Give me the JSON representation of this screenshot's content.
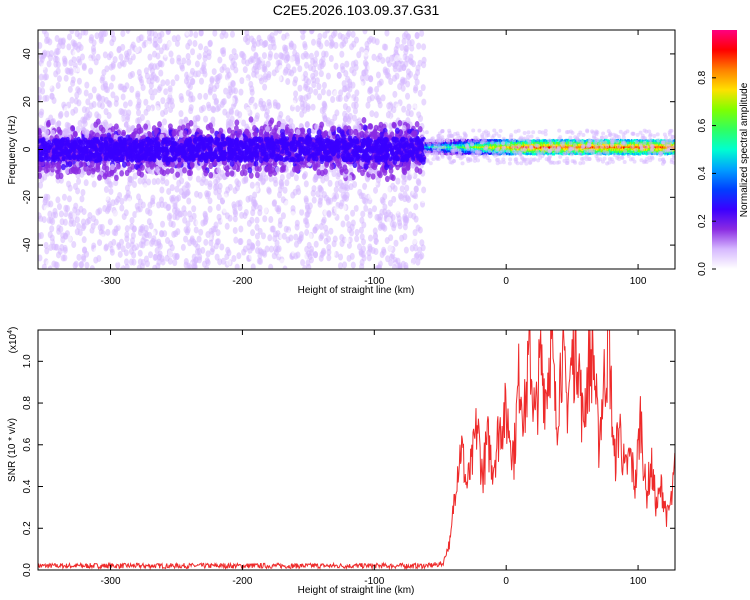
{
  "title": "C2E5.2026.103.09.37.G31",
  "chart_data": [
    {
      "type": "heatmap",
      "name": "spectrogram",
      "xlabel": "Height of straight line (km)",
      "ylabel": "Frequency (Hz)",
      "xlim": [
        -355,
        128
      ],
      "ylim": [
        -50,
        50
      ],
      "xticks": [
        -300,
        -200,
        -100,
        0,
        100
      ],
      "yticks": [
        -40,
        -20,
        0,
        20,
        40
      ],
      "colorbar": {
        "label": "Normalized spectral amplitude",
        "range": [
          0,
          1
        ],
        "ticks": [
          "0.0",
          "0.2",
          "0.4",
          "0.6",
          "0.8"
        ],
        "colors": [
          "#ffffff",
          "#d6b8ff",
          "#8a2be2",
          "#3a00ff",
          "#0040ff",
          "#00a0ff",
          "#00ffd0",
          "#30ff60",
          "#80ff00",
          "#ffe000",
          "#ff8000",
          "#ff0000",
          "#ff0080"
        ]
      },
      "features": [
        {
          "region": "x from -355 to -62 km",
          "description": "broad noise: scattered violet speckle over full band, dense blue band around 0 Hz (about -10 to +10 Hz)"
        },
        {
          "region": "x from -62 to 128 km",
          "description": "narrow signal near +1 Hz, amplitude 0.4-0.95 (green to red), width about +/-3 Hz"
        }
      ]
    },
    {
      "type": "line",
      "name": "snr",
      "xlabel": "Height of straight line (km)",
      "ylabel": "SNR (10 * v/v)",
      "yscale_label": "(x10",
      "yscale_exp": "4",
      "xlim": [
        -355,
        128
      ],
      "ylim": [
        0,
        1.15
      ],
      "xticks": [
        -300,
        -200,
        -100,
        0,
        100
      ],
      "yticks": [
        "0.0",
        "0.2",
        "0.4",
        "0.6",
        "0.8",
        "1.0"
      ],
      "series": [
        {
          "name": "SNR",
          "color": "#ee2a2a",
          "x": [
            -355,
            -300,
            -250,
            -200,
            -150,
            -100,
            -60,
            -48,
            -42,
            -38,
            -34,
            -30,
            -26,
            -22,
            -18,
            -14,
            -10,
            -6,
            -2,
            2,
            6,
            10,
            14,
            18,
            22,
            26,
            30,
            34,
            38,
            42,
            46,
            50,
            54,
            58,
            62,
            66,
            70,
            74,
            78,
            82,
            86,
            90,
            94,
            98,
            102,
            106,
            110,
            114,
            118,
            122,
            126,
            128
          ],
          "y": [
            0.02,
            0.02,
            0.02,
            0.02,
            0.02,
            0.02,
            0.02,
            0.03,
            0.15,
            0.45,
            0.6,
            0.4,
            0.5,
            0.7,
            0.45,
            0.62,
            0.5,
            0.65,
            0.75,
            0.7,
            0.55,
            0.95,
            0.75,
            1.05,
            0.7,
            1.0,
            0.85,
            1.1,
            0.7,
            1.05,
            0.8,
            1.0,
            1.1,
            0.7,
            0.95,
            1.05,
            0.6,
            0.9,
            1.08,
            0.5,
            0.7,
            0.45,
            0.55,
            0.4,
            0.75,
            0.35,
            0.5,
            0.3,
            0.4,
            0.25,
            0.35,
            0.5
          ]
        }
      ]
    }
  ]
}
